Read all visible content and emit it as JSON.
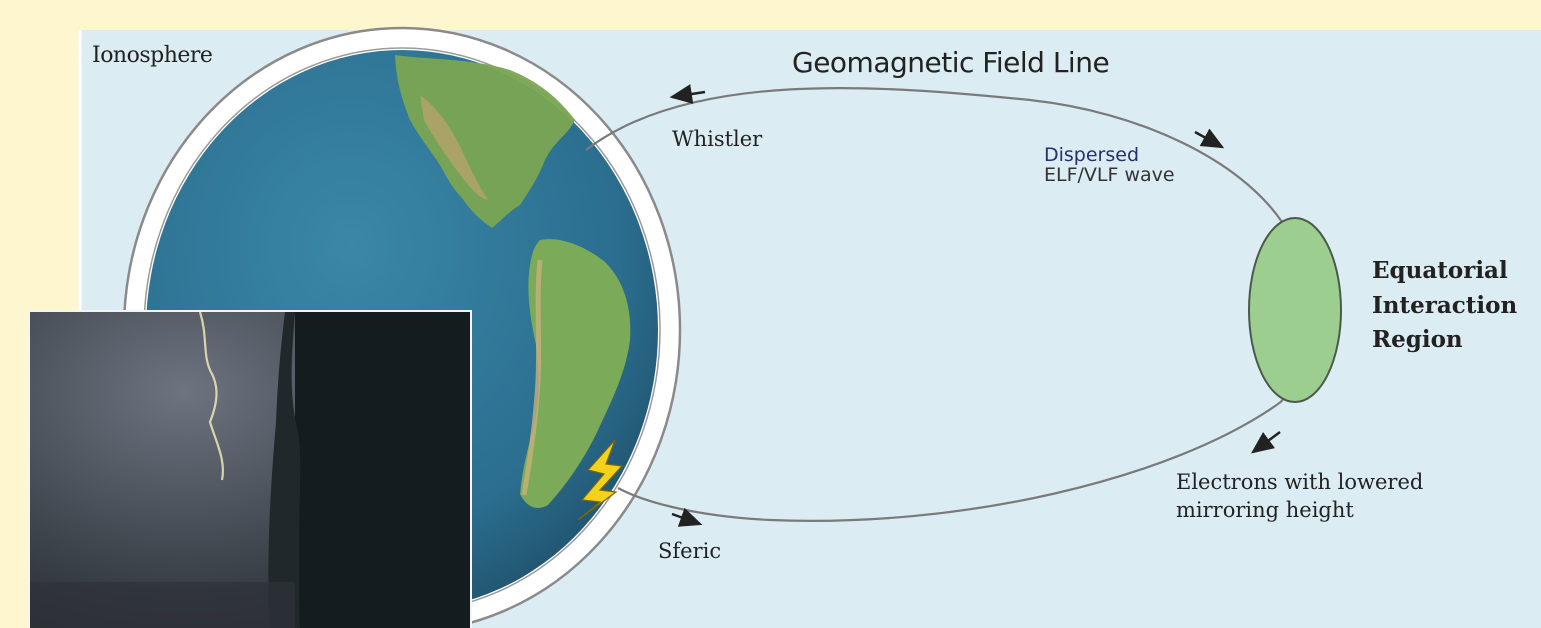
{
  "labels": {
    "ionosphere": "Ionosphere",
    "field_line": "Geomagnetic Field Line",
    "whistler": "Whistler",
    "dispersed_wave": [
      "Dispersed",
      "ELF/VLF wave"
    ],
    "equatorial_region": [
      "Equatorial",
      "Interaction",
      "Region"
    ],
    "electrons": [
      "Electrons with lowered",
      "mirroring height"
    ],
    "sferic": "Sferic"
  },
  "colors": {
    "page_background": "#fdf6cf",
    "diagram_background": "#dcecf3",
    "ionosphere_ring": "#ffffff",
    "ocean": "#2b6e8f",
    "land": "#6f9e4f",
    "interaction_region": "#9ccf8f",
    "lightning": "#f2d21a"
  },
  "icons": {
    "lightning": "lightning-bolt-icon"
  }
}
